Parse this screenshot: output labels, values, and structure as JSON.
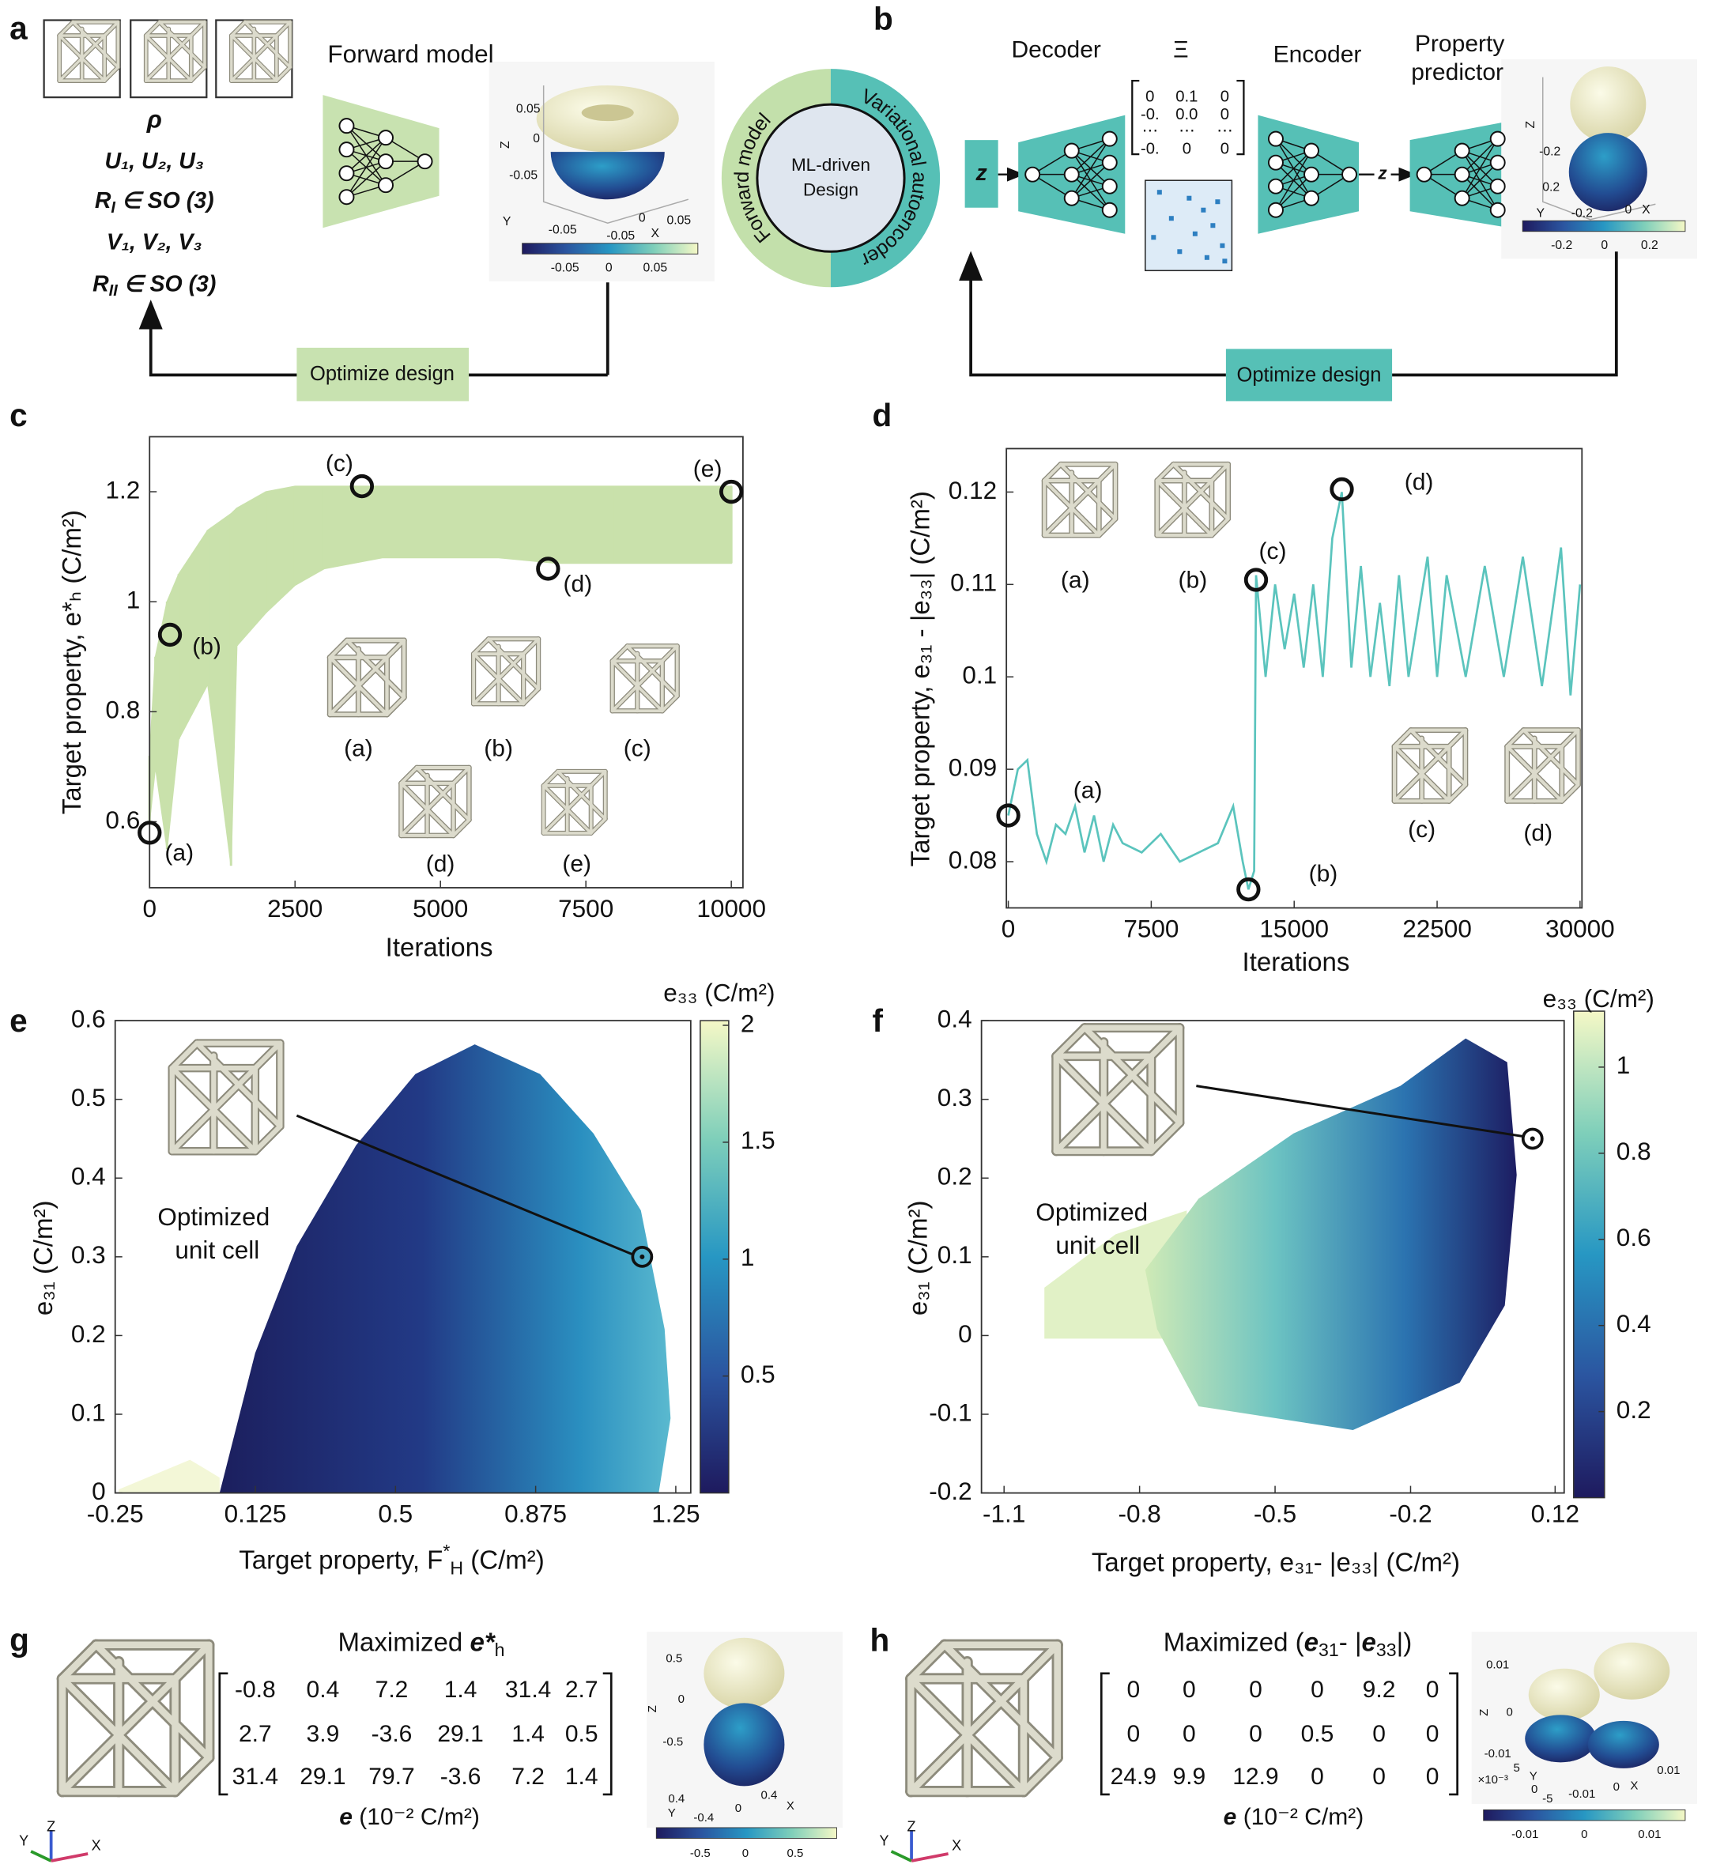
{
  "panel_a": {
    "letter": "a",
    "title": "Forward model",
    "rho": "ρ",
    "params": [
      "U₁, U₂, U₃",
      [
        {
          "t": "R"
        },
        {
          "sub": "I"
        },
        {
          "t": " ∈ SO (3)"
        }
      ],
      "V₁, V₂, V₃",
      [
        {
          "t": "R"
        },
        {
          "sub": "II"
        },
        {
          "t": " ∈ SO (3)"
        }
      ]
    ],
    "button": "Optimize design",
    "inset_labels": [
      "0.05",
      "0",
      "-0.05",
      "Z",
      "Y",
      "-0.05",
      "0",
      "-0.05",
      "X",
      "0.05",
      "-0.05",
      "0",
      "0.05"
    ]
  },
  "cycle": {
    "left": "Forward model",
    "right": "Variational autoencoder",
    "center": [
      "ML-driven",
      "Design"
    ]
  },
  "panel_b": {
    "letter": "b",
    "decoder": "Decoder",
    "xi": "Ξ",
    "encoder": "Encoder",
    "predictor": [
      "Property",
      "predictor"
    ],
    "latent": [
      "z",
      "z"
    ],
    "matrix": [
      [
        "0",
        "0.1",
        "0"
      ],
      [
        "-0.",
        "0.0",
        "0"
      ],
      [
        "⋯",
        "⋯",
        "⋯"
      ],
      [
        "-0.",
        "0",
        "0"
      ]
    ],
    "button": "Optimize design",
    "inset_labels": [
      "Z",
      "-0.2",
      "0.2",
      "Y",
      "-0.2",
      "0",
      "X",
      "-0.2",
      "0",
      "0.2"
    ]
  },
  "chart_data": [
    {
      "type": "line",
      "panel_label": "c",
      "x": [
        0,
        100,
        300,
        500,
        1000,
        1400,
        1500,
        2000,
        2500,
        3000,
        4000,
        5000,
        6000,
        7000,
        8000,
        10000
      ],
      "values": [
        0.72,
        0.9,
        1.0,
        1.05,
        1.13,
        1.16,
        1.17,
        1.2,
        1.21,
        1.21,
        1.21,
        1.21,
        1.21,
        1.21,
        1.21,
        1.21
      ],
      "min_values": [
        0.6,
        0.7,
        0.55,
        0.75,
        0.85,
        0.52,
        0.92,
        0.98,
        1.03,
        1.06,
        1.08,
        1.08,
        1.08,
        1.07,
        1.07,
        1.07
      ],
      "color": "#c9e1ab",
      "xlim": [
        0,
        10200
      ],
      "xticks": [
        0,
        2500,
        5000,
        7500,
        10000
      ],
      "ylim": [
        0.48,
        1.3
      ],
      "yticks": [
        0.6,
        0.8,
        1,
        1.2
      ],
      "x_label": "Iterations",
      "y_label": "Target property, e*ₕ (C/m²)",
      "highlights": [
        {
          "x": 0,
          "y": 0.58,
          "label": "(a)"
        },
        {
          "x": 350,
          "y": 0.94,
          "label": "(b)"
        },
        {
          "x": 3650,
          "y": 1.21,
          "label": "(c)"
        },
        {
          "x": 6850,
          "y": 1.06,
          "label": "(d)"
        },
        {
          "x": 10000,
          "y": 1.2,
          "label": "(e)"
        }
      ],
      "insets": [
        "(a)",
        "(b)",
        "(c)",
        "(d)",
        "(e)"
      ]
    },
    {
      "type": "line",
      "panel_label": "d",
      "x": [
        0,
        500,
        1000,
        1500,
        2000,
        2500,
        3000,
        3500,
        4000,
        4500,
        5000,
        5500,
        6000,
        7000,
        8000,
        9000,
        10000,
        11000,
        11800,
        12300,
        12600,
        12900,
        13000,
        13500,
        14000,
        14500,
        15000,
        15500,
        16000,
        16500,
        17000,
        17500,
        18000,
        18500,
        19000,
        19500,
        20000,
        20500,
        21000,
        22000,
        22500,
        23000,
        24000,
        25000,
        26000,
        27000,
        28000,
        29000,
        29500,
        30000
      ],
      "values": [
        0.085,
        0.09,
        0.091,
        0.083,
        0.08,
        0.084,
        0.083,
        0.086,
        0.081,
        0.085,
        0.08,
        0.084,
        0.082,
        0.081,
        0.083,
        0.08,
        0.081,
        0.082,
        0.086,
        0.08,
        0.077,
        0.079,
        0.111,
        0.1,
        0.11,
        0.103,
        0.109,
        0.101,
        0.11,
        0.1,
        0.115,
        0.12,
        0.101,
        0.112,
        0.1,
        0.108,
        0.099,
        0.111,
        0.1,
        0.113,
        0.1,
        0.111,
        0.1,
        0.112,
        0.1,
        0.113,
        0.099,
        0.114,
        0.098,
        0.11
      ],
      "color": "#5bc4bd",
      "xlim": [
        -100,
        30100
      ],
      "xticks": [
        0,
        7500,
        15000,
        22500,
        30000
      ],
      "ylim": [
        0.075,
        0.1247
      ],
      "yticks": [
        0.08,
        0.09,
        0.1,
        0.11,
        0.12
      ],
      "x_label": "Iterations",
      "y_label": "Target property, e₃₁ - |e₃₃| (C/m²)",
      "highlights": [
        {
          "x": 0,
          "y": 0.085,
          "label": "(a)"
        },
        {
          "x": 12600,
          "y": 0.077,
          "label": "(b)"
        },
        {
          "x": 13000,
          "y": 0.1105,
          "label": "(c)"
        },
        {
          "x": 17500,
          "y": 0.1203,
          "label": "(d)"
        }
      ],
      "insets": [
        "(a)",
        "(b)",
        "(c)",
        "(d)"
      ]
    },
    {
      "type": "scatter",
      "panel_label": "e",
      "x": [
        1.16
      ],
      "values": [
        0.3
      ],
      "xlim": [
        -0.25,
        1.29
      ],
      "xticks": [
        -0.25,
        0.125,
        0.5,
        0.875,
        1.25
      ],
      "ylim": [
        0,
        0.6
      ],
      "yticks": [
        0,
        0.1,
        0.2,
        0.3,
        0.4,
        0.5,
        0.6
      ],
      "x_label": [
        {
          "t": "Target property, F"
        },
        {
          "sup": "*"
        },
        {
          "sub": "H"
        },
        {
          "t": " (C/m²)"
        }
      ],
      "y_label": "e₃₁ (C/m²)",
      "colorbar": {
        "label": "e₃₃ (C/m²)",
        "lim": [
          0,
          2.02
        ],
        "ticks": [
          0.5,
          1,
          1.5,
          2
        ]
      },
      "annotation": [
        "Optimized",
        "unit cell"
      ]
    },
    {
      "type": "scatter",
      "panel_label": "f",
      "x": [
        0.07
      ],
      "values": [
        0.25
      ],
      "xlim": [
        -1.15,
        0.14
      ],
      "xticks": [
        -1.1,
        -0.8,
        -0.5,
        -0.2,
        0.12
      ],
      "ylim": [
        -0.2,
        0.4
      ],
      "yticks": [
        -0.2,
        -0.1,
        0,
        0.1,
        0.2,
        0.3,
        0.4
      ],
      "x_label": "Target property, e₃₁- |e₃₃| (C/m²)",
      "y_label": "e₃₁ (C/m²)",
      "colorbar": {
        "label": "e₃₃ (C/m²)",
        "lim": [
          0,
          1.13
        ],
        "ticks": [
          0.2,
          0.4,
          0.6,
          0.8,
          1
        ]
      },
      "annotation": [
        "Optimized",
        "unit cell"
      ]
    }
  ],
  "panel_g": {
    "letter": "g",
    "title": [
      {
        "t": "Maximized "
      },
      {
        "bi": "e*"
      },
      {
        "sub": "h"
      }
    ],
    "matrix": [
      [
        -0.8,
        0.4,
        7.2,
        1.4,
        31.4,
        2.7
      ],
      [
        2.7,
        3.9,
        -3.6,
        29.1,
        1.4,
        0.5
      ],
      [
        31.4,
        29.1,
        79.7,
        -3.6,
        7.2,
        1.4
      ]
    ],
    "unit": [
      {
        "bi": "e"
      },
      {
        "t": " (10⁻² C/m²)"
      }
    ],
    "axes": [
      "Z",
      "Y",
      "X"
    ],
    "inset_labels": [
      "0.5",
      "0",
      "-0.5",
      "Z",
      "0.4",
      "Y",
      "-0.4",
      "0",
      "0.4",
      "X",
      "-0.5",
      "0",
      "0.5"
    ]
  },
  "panel_h": {
    "letter": "h",
    "title": [
      {
        "t": "Maximized ("
      },
      {
        "bi": "e"
      },
      {
        "sub": "31"
      },
      {
        "t": "- |"
      },
      {
        "bi": "e"
      },
      {
        "sub": "33"
      },
      {
        "t": "|)"
      }
    ],
    "matrix": [
      [
        0,
        0,
        0,
        0,
        9.2,
        0
      ],
      [
        0,
        0,
        0,
        0.5,
        0,
        0
      ],
      [
        24.9,
        9.9,
        12.9,
        0,
        0,
        0
      ]
    ],
    "unit": [
      {
        "bi": "e"
      },
      {
        "t": " (10⁻² C/m²)"
      }
    ],
    "axes": [
      "Z",
      "Y",
      "X"
    ],
    "inset_labels": [
      "0.01",
      "0",
      "-0.01",
      "Z",
      "×10⁻³",
      "5",
      "Y",
      "0",
      "-5",
      "-0.01",
      "0",
      "X",
      "0.01",
      "-0.01",
      "0",
      "0.01"
    ]
  }
}
